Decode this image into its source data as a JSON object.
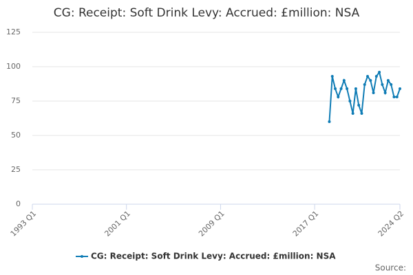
{
  "chart_data": {
    "type": "line",
    "title": "CG: Receipt: Soft Drink Levy: Accrued: £million: NSA",
    "x": [
      "2018 Q2",
      "2018 Q3",
      "2018 Q4",
      "2019 Q1",
      "2019 Q2",
      "2019 Q3",
      "2019 Q4",
      "2020 Q1",
      "2020 Q2",
      "2020 Q3",
      "2020 Q4",
      "2021 Q1",
      "2021 Q2",
      "2021 Q3",
      "2021 Q4",
      "2022 Q1",
      "2022 Q2",
      "2022 Q3",
      "2022 Q4",
      "2023 Q1",
      "2023 Q2",
      "2023 Q3",
      "2023 Q4",
      "2024 Q1",
      "2024 Q2"
    ],
    "series": [
      {
        "name": "CG: Receipt: Soft Drink Levy: Accrued: £million: NSA",
        "color": "#0f7cb5",
        "values": [
          60,
          93,
          84,
          78,
          84,
          90,
          84,
          75,
          66,
          84,
          72,
          66,
          87,
          93,
          90,
          81,
          93,
          96,
          87,
          81,
          90,
          87,
          78,
          78,
          84
        ]
      }
    ],
    "xlim": [
      "1993 Q1",
      "2024 Q2"
    ],
    "xticks": [
      "1993 Q1",
      "2001 Q1",
      "2009 Q1",
      "2017 Q1",
      "2024 Q2"
    ],
    "ylim": [
      0,
      125
    ],
    "yticks": [
      0,
      25,
      50,
      75,
      100,
      125
    ],
    "grid": true,
    "legend": "bottom",
    "source": "Source:"
  }
}
